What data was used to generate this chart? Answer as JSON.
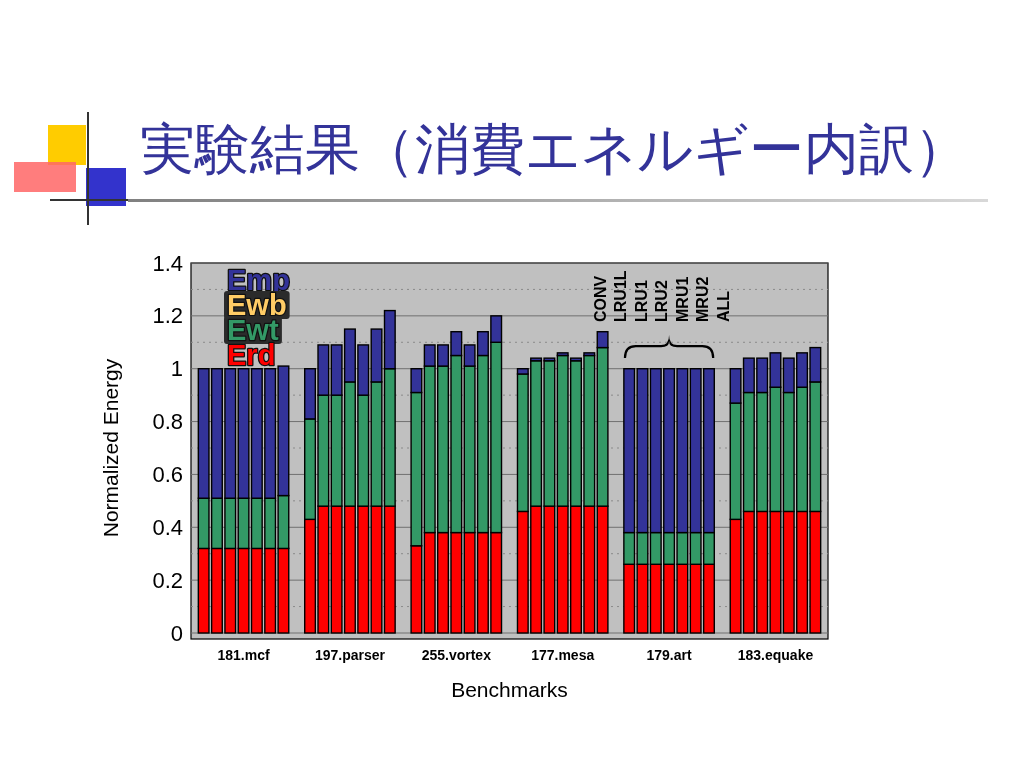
{
  "chart_data": {
    "type": "bar",
    "title": "実験結果（消費エネルギー内訳）",
    "xlabel": "Benchmarks",
    "ylabel": "Normalized Energy",
    "categories": [
      null,
      null,
      null,
      "181.mcf",
      null,
      null,
      null,
      null,
      null,
      null,
      null,
      "197.parser",
      null,
      null,
      null,
      null,
      null,
      null,
      null,
      "255.vortex",
      null,
      null,
      null,
      null,
      null,
      null,
      null,
      "177.mesa",
      null,
      null,
      null,
      null,
      null,
      null,
      null,
      "179.art",
      null,
      null,
      null,
      null,
      null,
      null,
      null,
      "183.equake",
      null,
      null,
      null
    ],
    "stacked": true,
    "series": [
      {
        "name": "Erd",
        "color": "#ff0000",
        "values": [
          0.32,
          0.32,
          0.32,
          0.32,
          0.32,
          0.32,
          0.32,
          null,
          0.43,
          0.48,
          0.48,
          0.48,
          0.48,
          0.48,
          0.48,
          null,
          0.33,
          0.38,
          0.38,
          0.38,
          0.38,
          0.38,
          0.38,
          null,
          0.46,
          0.48,
          0.48,
          0.48,
          0.48,
          0.48,
          0.48,
          null,
          0.26,
          0.26,
          0.26,
          0.26,
          0.26,
          0.26,
          0.26,
          null,
          0.43,
          0.46,
          0.46,
          0.46,
          0.46,
          0.46,
          0.46
        ]
      },
      {
        "name": "Ewt",
        "color": "#339966",
        "values": [
          0.19,
          0.19,
          0.19,
          0.19,
          0.19,
          0.19,
          0.2,
          null,
          0.38,
          0.42,
          0.42,
          0.47,
          0.42,
          0.47,
          0.52,
          null,
          0.58,
          0.63,
          0.63,
          0.67,
          0.63,
          0.67,
          0.72,
          null,
          0.52,
          0.55,
          0.55,
          0.57,
          0.55,
          0.57,
          0.6,
          null,
          0.12,
          0.12,
          0.12,
          0.12,
          0.12,
          0.12,
          0.12,
          null,
          0.44,
          0.45,
          0.45,
          0.47,
          0.45,
          0.47,
          0.49
        ]
      },
      {
        "name": "Ewb",
        "color": "#ffcc66",
        "values": [
          0,
          0,
          0,
          0,
          0,
          0,
          0,
          null,
          0,
          0,
          0,
          0,
          0,
          0,
          0,
          null,
          0,
          0,
          0,
          0,
          0,
          0,
          0,
          null,
          0,
          0,
          0,
          0,
          0,
          0,
          0,
          null,
          0,
          0,
          0,
          0,
          0,
          0,
          0,
          null,
          0,
          0,
          0,
          0,
          0,
          0,
          0
        ]
      },
      {
        "name": "Emp",
        "color": "#333399",
        "values": [
          0.49,
          0.49,
          0.49,
          0.49,
          0.49,
          0.49,
          0.49,
          null,
          0.19,
          0.19,
          0.19,
          0.2,
          0.19,
          0.2,
          0.22,
          null,
          0.09,
          0.08,
          0.08,
          0.09,
          0.08,
          0.09,
          0.1,
          null,
          0.02,
          0.01,
          0.01,
          0.01,
          0.01,
          0.01,
          0.06,
          null,
          0.62,
          0.62,
          0.62,
          0.62,
          0.62,
          0.62,
          0.62,
          null,
          0.13,
          0.13,
          0.13,
          0.13,
          0.13,
          0.13,
          0.13
        ]
      }
    ],
    "ylim": [
      0,
      1.4
    ],
    "yticks": [
      0,
      {
        "value": 0.1,
        "label": null
      },
      0.2,
      {
        "value": 0.3,
        "label": null
      },
      0.4,
      {
        "value": 0.5,
        "label": null
      },
      0.6,
      {
        "value": 0.7,
        "label": null
      },
      0.8,
      {
        "value": 0.9,
        "label": null
      },
      1,
      {
        "value": 1.1,
        "label": null
      },
      1.2,
      {
        "value": 1.3,
        "label": null
      },
      1.4
    ],
    "grid": "y",
    "legend": "top left",
    "annotations": [
      "CONV",
      "LRU1L",
      "LRU1",
      "LRU2",
      "MRU1",
      "MRU2",
      "ALL"
    ]
  }
}
